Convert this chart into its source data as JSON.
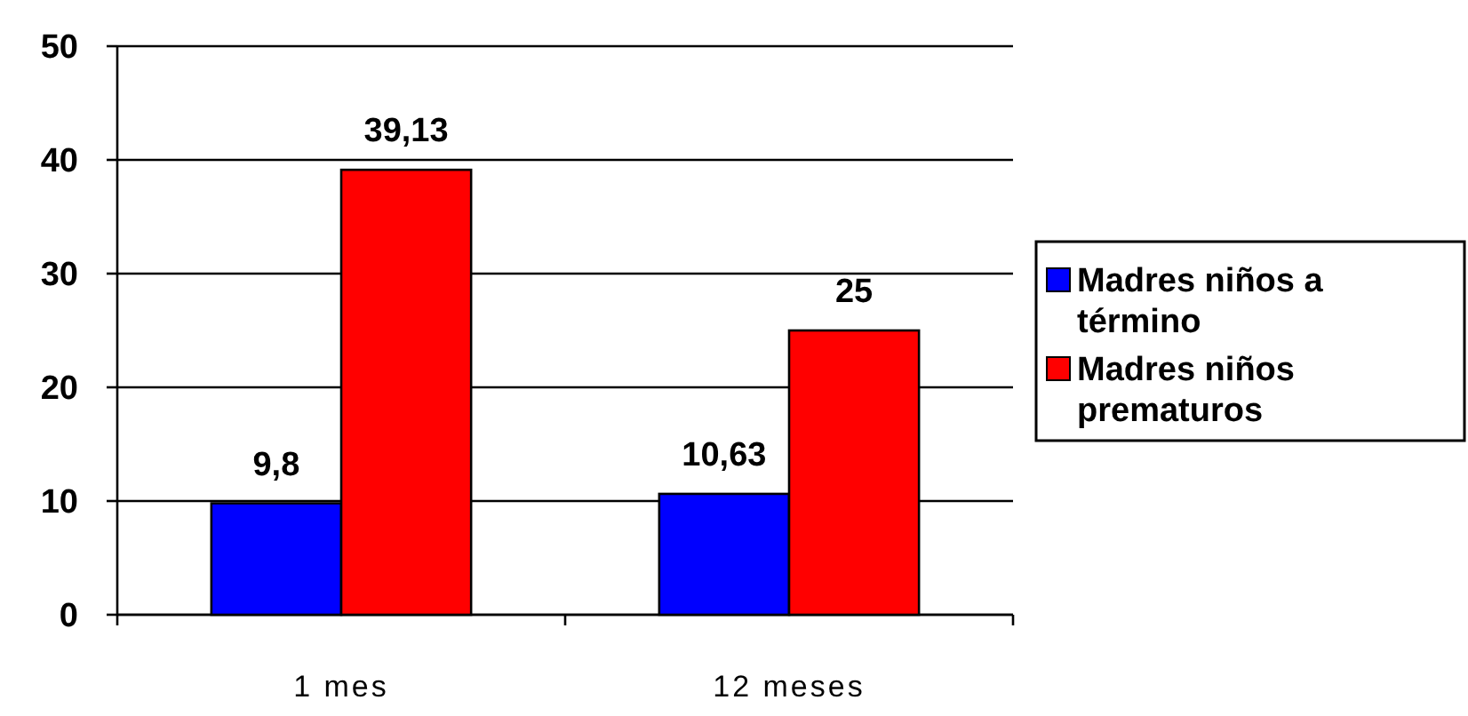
{
  "chart_data": {
    "type": "bar",
    "categories": [
      "1 mes",
      "12 meses"
    ],
    "series": [
      {
        "name": "Madres niños a término",
        "color": "#0000ff",
        "values": [
          9.8,
          10.63
        ],
        "value_labels": [
          "9,8",
          "10,63"
        ]
      },
      {
        "name": "Madres niños prematuros",
        "color": "#ff0000",
        "values": [
          39.13,
          25
        ],
        "value_labels": [
          "39,13",
          "25"
        ]
      }
    ],
    "ylim": [
      0,
      50
    ],
    "yticks": [
      0,
      10,
      20,
      30,
      40,
      50
    ],
    "grid": "y",
    "legend": "right"
  }
}
